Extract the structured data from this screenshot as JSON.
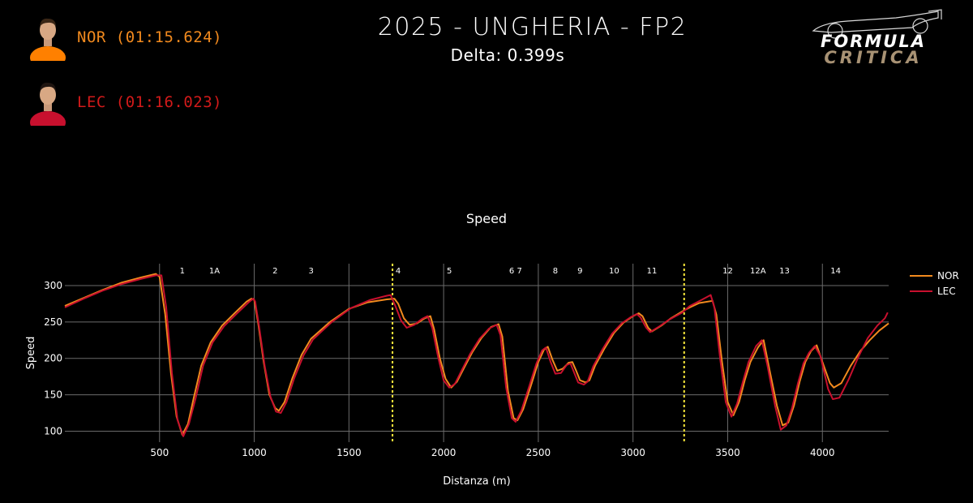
{
  "header": {
    "title": "2025 - UNGHERIA - FP2",
    "subtitle": "Delta: 0.399s"
  },
  "drivers": [
    {
      "label": "NOR (01:15.624)",
      "color": "#f28a1e",
      "suit_color": "#ff8000"
    },
    {
      "label": "LEC (01:16.023)",
      "color": "#d21a1a",
      "suit_color": "#c8102e"
    }
  ],
  "logo": {
    "line1": "FORMULA",
    "line2": "CRITICA"
  },
  "chart_data": {
    "type": "line",
    "title": "Speed",
    "xlabel": "Distanza (m)",
    "ylabel": "Speed",
    "xlim": [
      0,
      4350
    ],
    "ylim": [
      85,
      330
    ],
    "x_ticks": [
      500,
      1000,
      1500,
      2000,
      2500,
      3000,
      3500,
      4000
    ],
    "y_ticks": [
      100,
      150,
      200,
      250,
      300
    ],
    "legend_position": "top-right",
    "sector_lines": [
      1730,
      3270
    ],
    "sector_line_color": "#ffeb3b",
    "corners": [
      {
        "label": "1",
        "x": 620
      },
      {
        "label": "1A",
        "x": 790
      },
      {
        "label": "2",
        "x": 1110
      },
      {
        "label": "3",
        "x": 1300
      },
      {
        "label": "4",
        "x": 1760
      },
      {
        "label": "5",
        "x": 2030
      },
      {
        "label": "6 7",
        "x": 2380
      },
      {
        "label": "8",
        "x": 2590
      },
      {
        "label": "9",
        "x": 2720
      },
      {
        "label": "10",
        "x": 2900
      },
      {
        "label": "11",
        "x": 3100
      },
      {
        "label": "12",
        "x": 3500
      },
      {
        "label": "12A",
        "x": 3660
      },
      {
        "label": "13",
        "x": 3800
      },
      {
        "label": "14",
        "x": 4070
      }
    ],
    "series": [
      {
        "name": "NOR",
        "color": "#f28a1e",
        "points": [
          [
            0,
            272
          ],
          [
            100,
            283
          ],
          [
            200,
            294
          ],
          [
            300,
            304
          ],
          [
            400,
            311
          ],
          [
            480,
            316
          ],
          [
            500,
            312
          ],
          [
            530,
            260
          ],
          [
            560,
            180
          ],
          [
            590,
            120
          ],
          [
            620,
            95
          ],
          [
            650,
            110
          ],
          [
            680,
            145
          ],
          [
            720,
            190
          ],
          [
            770,
            222
          ],
          [
            830,
            245
          ],
          [
            900,
            263
          ],
          [
            960,
            278
          ],
          [
            985,
            282
          ],
          [
            1000,
            280
          ],
          [
            1020,
            250
          ],
          [
            1050,
            195
          ],
          [
            1080,
            150
          ],
          [
            1110,
            132
          ],
          [
            1130,
            128
          ],
          [
            1160,
            140
          ],
          [
            1200,
            172
          ],
          [
            1250,
            205
          ],
          [
            1300,
            227
          ],
          [
            1400,
            250
          ],
          [
            1500,
            268
          ],
          [
            1600,
            277
          ],
          [
            1700,
            281
          ],
          [
            1740,
            282
          ],
          [
            1760,
            275
          ],
          [
            1790,
            255
          ],
          [
            1820,
            246
          ],
          [
            1860,
            248
          ],
          [
            1900,
            255
          ],
          [
            1930,
            258
          ],
          [
            1950,
            240
          ],
          [
            1980,
            200
          ],
          [
            2010,
            172
          ],
          [
            2040,
            160
          ],
          [
            2070,
            168
          ],
          [
            2110,
            188
          ],
          [
            2150,
            208
          ],
          [
            2200,
            228
          ],
          [
            2250,
            243
          ],
          [
            2290,
            247
          ],
          [
            2310,
            230
          ],
          [
            2340,
            155
          ],
          [
            2370,
            118
          ],
          [
            2390,
            115
          ],
          [
            2420,
            130
          ],
          [
            2460,
            162
          ],
          [
            2500,
            195
          ],
          [
            2530,
            212
          ],
          [
            2550,
            216
          ],
          [
            2575,
            198
          ],
          [
            2600,
            183
          ],
          [
            2630,
            186
          ],
          [
            2660,
            194
          ],
          [
            2680,
            195
          ],
          [
            2700,
            183
          ],
          [
            2720,
            170
          ],
          [
            2750,
            167
          ],
          [
            2770,
            170
          ],
          [
            2800,
            190
          ],
          [
            2850,
            214
          ],
          [
            2900,
            235
          ],
          [
            2950,
            249
          ],
          [
            3000,
            258
          ],
          [
            3030,
            262
          ],
          [
            3050,
            258
          ],
          [
            3080,
            242
          ],
          [
            3100,
            237
          ],
          [
            3150,
            245
          ],
          [
            3200,
            255
          ],
          [
            3270,
            266
          ],
          [
            3300,
            270
          ],
          [
            3350,
            276
          ],
          [
            3420,
            279
          ],
          [
            3440,
            260
          ],
          [
            3470,
            195
          ],
          [
            3500,
            140
          ],
          [
            3530,
            122
          ],
          [
            3560,
            140
          ],
          [
            3590,
            170
          ],
          [
            3620,
            195
          ],
          [
            3660,
            215
          ],
          [
            3690,
            225
          ],
          [
            3720,
            185
          ],
          [
            3760,
            135
          ],
          [
            3790,
            108
          ],
          [
            3820,
            112
          ],
          [
            3850,
            135
          ],
          [
            3880,
            168
          ],
          [
            3910,
            195
          ],
          [
            3940,
            210
          ],
          [
            3970,
            218
          ],
          [
            4000,
            195
          ],
          [
            4040,
            166
          ],
          [
            4060,
            160
          ],
          [
            4100,
            166
          ],
          [
            4150,
            190
          ],
          [
            4200,
            210
          ],
          [
            4250,
            225
          ],
          [
            4300,
            238
          ],
          [
            4350,
            248
          ]
        ]
      },
      {
        "name": "LEC",
        "color": "#c8102e",
        "points": [
          [
            0,
            270
          ],
          [
            100,
            282
          ],
          [
            200,
            293
          ],
          [
            300,
            302
          ],
          [
            400,
            309
          ],
          [
            480,
            314
          ],
          [
            510,
            314
          ],
          [
            535,
            270
          ],
          [
            565,
            180
          ],
          [
            595,
            115
          ],
          [
            625,
            93
          ],
          [
            655,
            110
          ],
          [
            690,
            145
          ],
          [
            730,
            190
          ],
          [
            780,
            222
          ],
          [
            840,
            244
          ],
          [
            910,
            262
          ],
          [
            970,
            277
          ],
          [
            995,
            282
          ],
          [
            1005,
            278
          ],
          [
            1025,
            245
          ],
          [
            1055,
            190
          ],
          [
            1085,
            148
          ],
          [
            1115,
            127
          ],
          [
            1140,
            125
          ],
          [
            1170,
            140
          ],
          [
            1210,
            172
          ],
          [
            1260,
            204
          ],
          [
            1310,
            226
          ],
          [
            1410,
            250
          ],
          [
            1510,
            269
          ],
          [
            1610,
            280
          ],
          [
            1700,
            286
          ],
          [
            1720,
            287
          ],
          [
            1745,
            272
          ],
          [
            1775,
            252
          ],
          [
            1805,
            242
          ],
          [
            1845,
            246
          ],
          [
            1885,
            254
          ],
          [
            1915,
            258
          ],
          [
            1940,
            242
          ],
          [
            1970,
            203
          ],
          [
            2000,
            170
          ],
          [
            2030,
            160
          ],
          [
            2060,
            165
          ],
          [
            2100,
            186
          ],
          [
            2140,
            206
          ],
          [
            2190,
            227
          ],
          [
            2240,
            241
          ],
          [
            2280,
            246
          ],
          [
            2300,
            232
          ],
          [
            2330,
            160
          ],
          [
            2360,
            118
          ],
          [
            2380,
            113
          ],
          [
            2410,
            128
          ],
          [
            2450,
            160
          ],
          [
            2490,
            193
          ],
          [
            2520,
            211
          ],
          [
            2540,
            215
          ],
          [
            2565,
            195
          ],
          [
            2590,
            179
          ],
          [
            2620,
            180
          ],
          [
            2650,
            191
          ],
          [
            2670,
            193
          ],
          [
            2690,
            180
          ],
          [
            2710,
            167
          ],
          [
            2740,
            164
          ],
          [
            2760,
            168
          ],
          [
            2790,
            189
          ],
          [
            2840,
            213
          ],
          [
            2890,
            234
          ],
          [
            2940,
            248
          ],
          [
            2990,
            257
          ],
          [
            3020,
            261
          ],
          [
            3040,
            256
          ],
          [
            3070,
            242
          ],
          [
            3090,
            236
          ],
          [
            3140,
            244
          ],
          [
            3190,
            253
          ],
          [
            3260,
            263
          ],
          [
            3300,
            272
          ],
          [
            3360,
            280
          ],
          [
            3410,
            287
          ],
          [
            3430,
            270
          ],
          [
            3460,
            200
          ],
          [
            3490,
            140
          ],
          [
            3520,
            120
          ],
          [
            3550,
            138
          ],
          [
            3580,
            168
          ],
          [
            3610,
            195
          ],
          [
            3650,
            217
          ],
          [
            3680,
            225
          ],
          [
            3710,
            190
          ],
          [
            3750,
            135
          ],
          [
            3780,
            102
          ],
          [
            3810,
            108
          ],
          [
            3840,
            132
          ],
          [
            3870,
            165
          ],
          [
            3900,
            193
          ],
          [
            3930,
            208
          ],
          [
            3960,
            217
          ],
          [
            3990,
            203
          ],
          [
            4030,
            158
          ],
          [
            4055,
            144
          ],
          [
            4090,
            146
          ],
          [
            4140,
            172
          ],
          [
            4190,
            202
          ],
          [
            4240,
            228
          ],
          [
            4290,
            245
          ],
          [
            4330,
            255
          ],
          [
            4345,
            263
          ]
        ]
      }
    ]
  }
}
